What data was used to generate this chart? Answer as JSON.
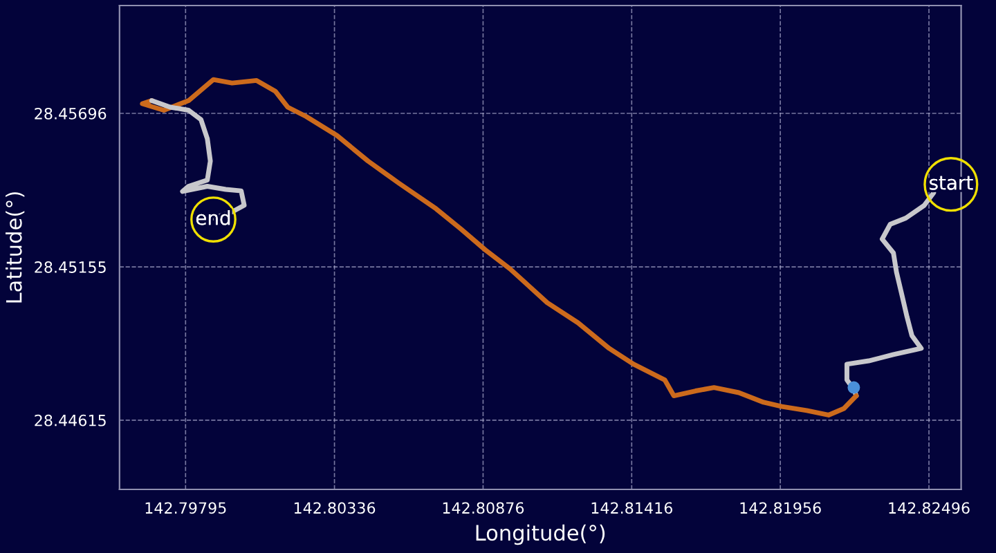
{
  "chart_data": {
    "type": "line",
    "xlabel": "Longitude(°)",
    "ylabel": "Latitude(°)",
    "xlim": [
      142.79555,
      142.82613
    ],
    "ylim": [
      28.44371,
      28.46076
    ],
    "xticks": [
      142.79795,
      142.80336,
      142.80876,
      142.81416,
      142.81956,
      142.82496
    ],
    "yticks": [
      28.44615,
      28.45155,
      28.45696
    ],
    "grid": true,
    "legend": false,
    "line_style": "solid",
    "series": [
      {
        "color": "#c8c8cc",
        "x": [
          142.82513,
          142.82479,
          142.82412,
          142.82355,
          142.82326,
          142.82367,
          142.82378,
          142.824,
          142.82416,
          142.82434,
          142.82468,
          142.82367,
          142.82277,
          142.82198,
          142.82198,
          142.82223,
          142.82232
        ],
        "values": [
          28.45416,
          28.45372,
          28.45327,
          28.45305,
          28.45253,
          28.45204,
          28.45137,
          28.45047,
          28.4498,
          28.44913,
          28.44868,
          28.44846,
          28.44824,
          28.44812,
          28.44757,
          28.44723,
          28.44701
        ]
      },
      {
        "color": "#cc6a1c",
        "x": [
          142.82232,
          142.82187,
          142.82131,
          142.82052,
          142.81962,
          142.81895,
          142.81805,
          142.81715,
          142.81648,
          142.81569,
          142.81536,
          142.81423,
          142.81334,
          142.81221,
          142.81109,
          142.80974,
          142.80884,
          142.80795,
          142.80705,
          142.8057,
          142.80458,
          142.80345,
          142.80233,
          142.80166,
          142.80121,
          142.80053,
          142.79964,
          142.79896,
          142.79806,
          142.79716,
          142.79638,
          142.79672
        ],
        "values": [
          28.44701,
          28.44656,
          28.44633,
          28.44649,
          28.44663,
          28.44678,
          28.44712,
          28.4473,
          28.44718,
          28.44701,
          28.44757,
          28.44812,
          28.44868,
          28.44958,
          28.45029,
          28.45148,
          28.45215,
          28.45289,
          28.4536,
          28.4545,
          28.45528,
          28.45618,
          28.45685,
          28.45718,
          28.45774,
          28.45812,
          28.45803,
          28.45815,
          28.45741,
          28.45707,
          28.4573,
          28.45741
        ]
      },
      {
        "color": "#c8c8cc",
        "x": [
          142.79672,
          142.79739,
          142.79806,
          142.79851,
          142.79874,
          142.79885,
          142.79874,
          142.79806,
          142.79784,
          142.79874,
          142.79941,
          142.79997,
          142.80008,
          142.79964,
          142.79896
        ],
        "values": [
          28.45741,
          28.45718,
          28.45707,
          28.45674,
          28.45607,
          28.45528,
          28.45461,
          28.45439,
          28.45421,
          28.45439,
          28.45428,
          28.45423,
          28.45372,
          28.45349,
          28.45327
        ]
      },
      {
        "type": "scatter",
        "marker": "circle",
        "color": "#4a90d9",
        "x": [
          142.82223
        ],
        "values": [
          28.4473
        ]
      }
    ],
    "annotations": [
      {
        "text": "start",
        "x": 142.82576,
        "y": 28.45446
      },
      {
        "text": "end",
        "x": 142.79896,
        "y": 28.45322
      }
    ]
  }
}
